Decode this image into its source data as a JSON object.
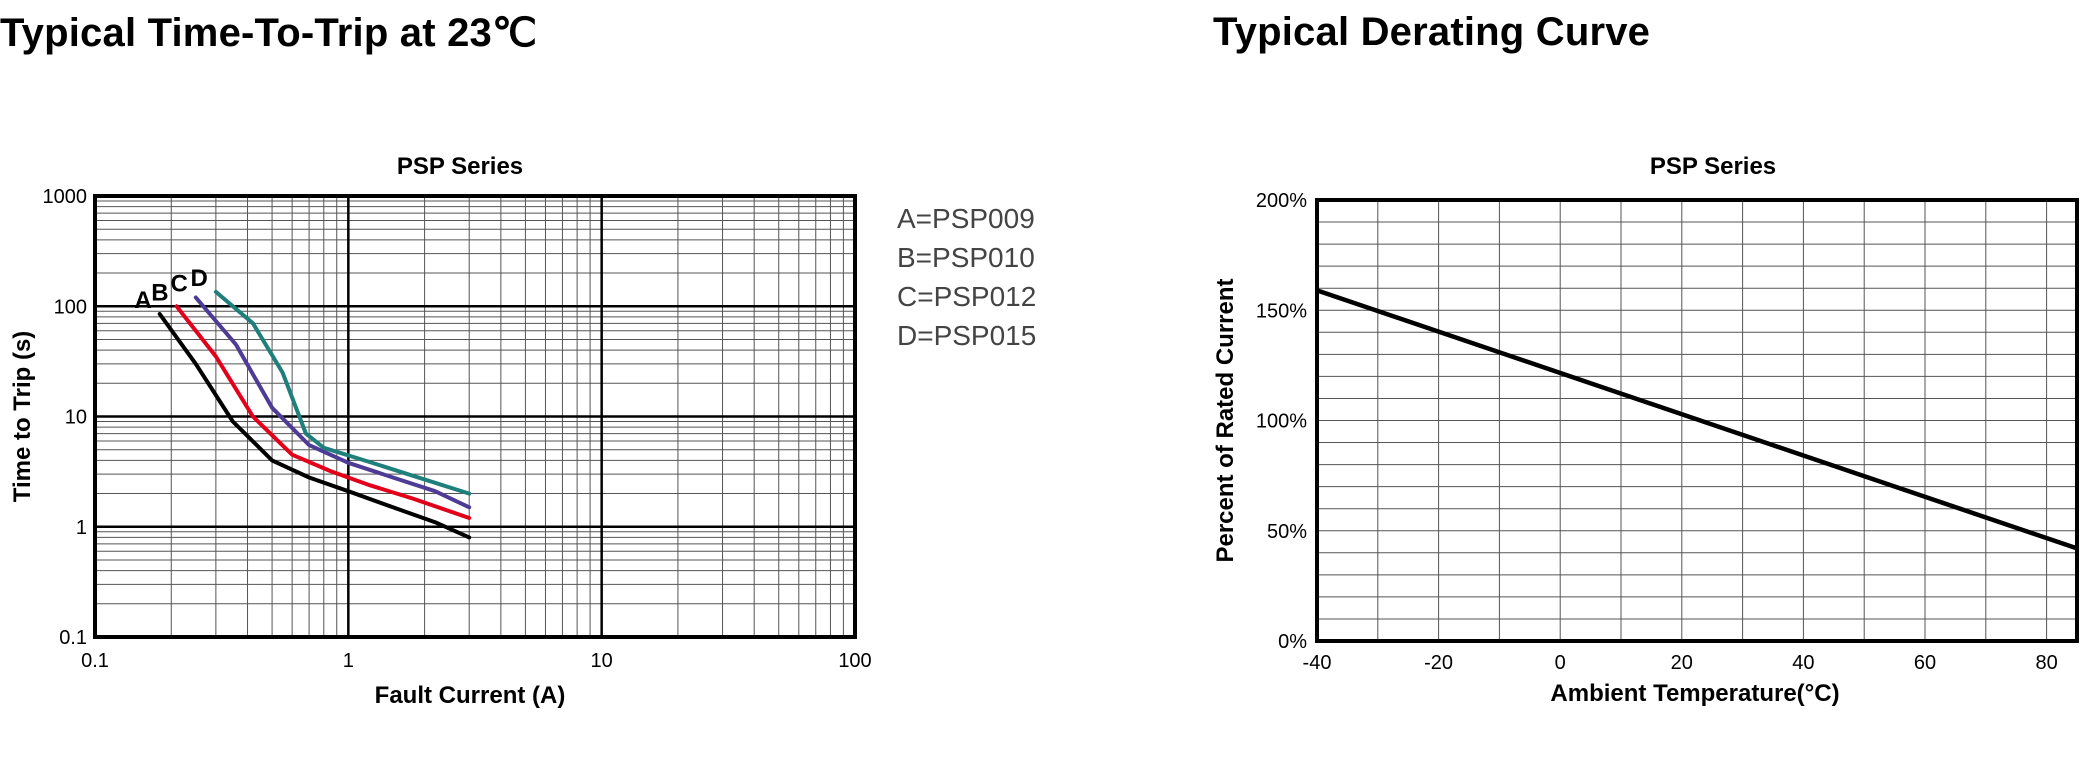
{
  "titles": {
    "left": "Typical Time-To-Trip at 23℃",
    "right": "Typical Derating Curve"
  },
  "chart_data": [
    {
      "type": "line",
      "title": "PSP Series",
      "xlabel": "Fault Current (A)",
      "ylabel": "Time to Trip (s)",
      "xscale": "log",
      "yscale": "log",
      "xlim": [
        0.1,
        100
      ],
      "ylim": [
        0.1,
        1000
      ],
      "x_ticks": [
        "0.1",
        "1",
        "10",
        "100"
      ],
      "y_ticks": [
        "1000",
        "100",
        "10",
        "1",
        "0.1"
      ],
      "grid": true,
      "legend": {
        "position": "right",
        "entries": [
          "A=PSP009",
          "B=PSP010",
          "C=PSP012",
          "D=PSP015"
        ]
      },
      "series": [
        {
          "name": "A",
          "color": "#000000",
          "points": [
            [
              0.18,
              85
            ],
            [
              0.25,
              30
            ],
            [
              0.35,
              9
            ],
            [
              0.5,
              4
            ],
            [
              0.7,
              2.8
            ],
            [
              1.0,
              2.1
            ],
            [
              1.5,
              1.5
            ],
            [
              2.2,
              1.1
            ],
            [
              3.0,
              0.8
            ]
          ]
        },
        {
          "name": "B",
          "color": "#e3001b",
          "points": [
            [
              0.21,
              100
            ],
            [
              0.3,
              35
            ],
            [
              0.42,
              10
            ],
            [
              0.6,
              4.5
            ],
            [
              0.85,
              3.2
            ],
            [
              1.2,
              2.4
            ],
            [
              1.8,
              1.8
            ],
            [
              3.0,
              1.2
            ]
          ]
        },
        {
          "name": "C",
          "color": "#4e3b96",
          "points": [
            [
              0.25,
              120
            ],
            [
              0.36,
              45
            ],
            [
              0.5,
              12
            ],
            [
              0.7,
              5.5
            ],
            [
              1.0,
              3.8
            ],
            [
              1.5,
              2.8
            ],
            [
              2.2,
              2.1
            ],
            [
              3.0,
              1.5
            ]
          ]
        },
        {
          "name": "D",
          "color": "#1e7f7b",
          "points": [
            [
              0.3,
              135
            ],
            [
              0.42,
              70
            ],
            [
              0.55,
              25
            ],
            [
              0.68,
              7
            ],
            [
              0.8,
              5.2
            ],
            [
              1.2,
              3.9
            ],
            [
              1.8,
              2.9
            ],
            [
              3.0,
              2.0
            ]
          ]
        }
      ]
    },
    {
      "type": "line",
      "title": "PSP Series",
      "xlabel": "Ambient Temperature(°C)",
      "ylabel": "Percent of Rated Current",
      "xlim": [
        -40,
        85
      ],
      "ylim": [
        0,
        200
      ],
      "x_ticks": [
        "-40",
        "-20",
        "0",
        "20",
        "40",
        "60",
        "80"
      ],
      "y_ticks": [
        "200%",
        "150%",
        "100%",
        "50%",
        "0%"
      ],
      "grid": true,
      "series": [
        {
          "color": "#000000",
          "x": [
            -40,
            85
          ],
          "y": [
            159,
            42
          ]
        }
      ]
    }
  ]
}
